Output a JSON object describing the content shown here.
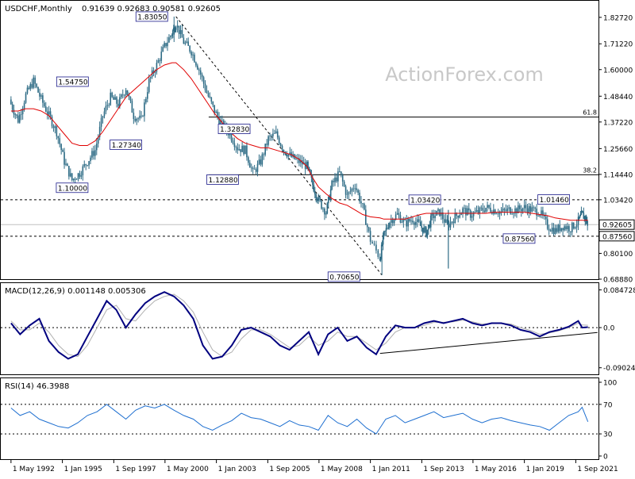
{
  "header": {
    "symbol": "USDCHF,Monthly",
    "ohlc": "0.91639 0.92683 0.90581 0.92605"
  },
  "watermark": "ActionForex.com",
  "chart_data": [
    {
      "type": "candlestick",
      "name": "price",
      "ylim": [
        0.6888,
        1.8992
      ],
      "y_ticks": [
        {
          "label": "1.82720",
          "value": 1.8272
        },
        {
          "label": "1.71220",
          "value": 1.7122
        },
        {
          "label": "1.60000",
          "value": 1.6
        },
        {
          "label": "1.48440",
          "value": 1.4844
        },
        {
          "label": "1.37220",
          "value": 1.3722
        },
        {
          "label": "1.25660",
          "value": 1.2566
        },
        {
          "label": "1.14440",
          "value": 1.1444
        },
        {
          "label": "1.03420",
          "value": 1.0342
        },
        {
          "label": "0.92605",
          "value": 0.92605
        },
        {
          "label": "0.87560",
          "value": 0.8756
        },
        {
          "label": "0.80100",
          "value": 0.801
        },
        {
          "label": "0.68880",
          "value": 0.6888
        }
      ],
      "series_x": [
        1992.33,
        1992.7,
        1993.1,
        1993.5,
        1993.9,
        1994.3,
        1994.7,
        1995.1,
        1995.5,
        1995.9,
        1996.3,
        1996.7,
        1997.1,
        1997.5,
        1997.9,
        1998.3,
        1998.7,
        1999.1,
        1999.5,
        1999.9,
        2000.3,
        2000.7,
        2000.9,
        2001.3,
        2001.7,
        2002.1,
        2002.5,
        2002.9,
        2003.3,
        2003.7,
        2004.1,
        2004.5,
        2004.9,
        2005.3,
        2005.7,
        2006.1,
        2006.5,
        2006.9,
        2007.3,
        2007.7,
        2008.0,
        2008.3,
        2008.7,
        2009.0,
        2009.4,
        2009.8,
        2010.2,
        2010.6,
        2011.0,
        2011.5,
        2011.7,
        2012.0,
        2012.4,
        2012.8,
        2013.2,
        2013.6,
        2013.9,
        2014.2,
        2014.6,
        2015.0,
        2015.4,
        2015.8,
        2016.2,
        2016.6,
        2017.0,
        2017.4,
        2017.8,
        2018.2,
        2018.6,
        2019.0,
        2019.4,
        2019.8,
        2020.2,
        2020.6,
        2021.0,
        2021.4,
        2021.8,
        2022.0,
        2022.2,
        2022.3
      ],
      "close": [
        1.45,
        1.38,
        1.49,
        1.55,
        1.47,
        1.4,
        1.33,
        1.2,
        1.12,
        1.15,
        1.2,
        1.25,
        1.4,
        1.48,
        1.45,
        1.52,
        1.4,
        1.38,
        1.55,
        1.62,
        1.7,
        1.76,
        1.8,
        1.72,
        1.68,
        1.6,
        1.5,
        1.42,
        1.36,
        1.32,
        1.26,
        1.25,
        1.15,
        1.2,
        1.3,
        1.32,
        1.25,
        1.22,
        1.2,
        1.18,
        1.1,
        1.03,
        0.98,
        1.1,
        1.15,
        1.05,
        1.1,
        1.0,
        0.86,
        0.78,
        0.88,
        0.94,
        0.97,
        0.93,
        0.95,
        0.92,
        0.89,
        0.96,
        0.98,
        0.92,
        0.96,
        0.99,
        0.97,
        0.98,
        1.0,
        0.99,
        0.98,
        0.99,
        0.99,
        1.0,
        0.99,
        0.98,
        0.92,
        0.9,
        0.92,
        0.91,
        0.94,
        0.97,
        0.95,
        0.926
      ],
      "ma": [
        1.42,
        1.42,
        1.43,
        1.43,
        1.42,
        1.4,
        1.36,
        1.32,
        1.28,
        1.27,
        1.27,
        1.29,
        1.33,
        1.38,
        1.43,
        1.48,
        1.51,
        1.54,
        1.57,
        1.6,
        1.62,
        1.63,
        1.63,
        1.6,
        1.56,
        1.51,
        1.46,
        1.41,
        1.37,
        1.33,
        1.3,
        1.28,
        1.27,
        1.26,
        1.26,
        1.25,
        1.24,
        1.23,
        1.21,
        1.18,
        1.13,
        1.09,
        1.06,
        1.04,
        1.02,
        1.01,
        0.99,
        0.97,
        0.96,
        0.955,
        0.95,
        0.95,
        0.95,
        0.95,
        0.96,
        0.97,
        0.975,
        0.975,
        0.975,
        0.975,
        0.975,
        0.975,
        0.975,
        0.975,
        0.975,
        0.98,
        0.98,
        0.98,
        0.98,
        0.98,
        0.975,
        0.97,
        0.965,
        0.955,
        0.95,
        0.945,
        0.945,
        0.945,
        0.945,
        0.945
      ],
      "fib_levels": [
        {
          "label": "61.8",
          "value": 1.3935
        },
        {
          "label": "38.2",
          "value": 1.1426
        }
      ],
      "dashed_levels": [
        1.0342,
        0.8756
      ],
      "annotations": [
        {
          "label": "1.83050",
          "x": 2000.8,
          "value": 1.8305
        },
        {
          "label": "1.54750",
          "x": 1996.5,
          "value": 1.5475
        },
        {
          "label": "1.27340",
          "x": 1997.3,
          "value": 1.2734
        },
        {
          "label": "1.10000",
          "x": 1994.6,
          "value": 1.1
        },
        {
          "label": "1.32830",
          "x": 2003.4,
          "value": 1.3283
        },
        {
          "label": "1.12880",
          "x": 2004.0,
          "value": 1.1288
        },
        {
          "label": "0.70650",
          "x": 2011.6,
          "value": 0.7065
        },
        {
          "label": "1.03420",
          "x": 2013.2,
          "value": 1.0342
        },
        {
          "label": "1.01460",
          "x": 2021.0,
          "value": 1.0146
        },
        {
          "label": "0.87560",
          "x": 2020.3,
          "value": 0.8756
        }
      ],
      "current_value": "0.92605",
      "current_level_value": "0.87560"
    },
    {
      "type": "line",
      "name": "MACD(12,26,9) 0.001148 0.005306",
      "ylim": [
        -0.105,
        0.1
      ],
      "y_ticks": [
        {
          "label": "0.084728",
          "value": 0.084728
        },
        {
          "label": "0.0",
          "value": 0.0
        },
        {
          "label": "-0.090243",
          "value": -0.090243
        }
      ],
      "x": [
        1992.33,
        1992.8,
        1993.3,
        1993.8,
        1994.3,
        1994.8,
        1995.3,
        1995.8,
        1996.3,
        1996.8,
        1997.3,
        1997.8,
        1998.3,
        1998.8,
        1999.3,
        1999.8,
        2000.3,
        2000.8,
        2001.3,
        2001.8,
        2002.3,
        2002.8,
        2003.3,
        2003.8,
        2004.3,
        2004.8,
        2005.3,
        2005.8,
        2006.3,
        2006.8,
        2007.3,
        2007.8,
        2008.3,
        2008.8,
        2009.3,
        2009.8,
        2010.3,
        2010.8,
        2011.3,
        2011.8,
        2012.3,
        2012.8,
        2013.3,
        2013.8,
        2014.3,
        2014.8,
        2015.3,
        2015.8,
        2016.3,
        2016.8,
        2017.3,
        2017.8,
        2018.3,
        2018.8,
        2019.3,
        2019.8,
        2020.3,
        2020.8,
        2021.3,
        2021.8,
        2022.0,
        2022.3
      ],
      "macd": [
        0.01,
        -0.015,
        0.005,
        0.02,
        -0.03,
        -0.055,
        -0.07,
        -0.06,
        -0.02,
        0.02,
        0.06,
        0.04,
        0.0,
        0.03,
        0.055,
        0.07,
        0.08,
        0.07,
        0.05,
        0.02,
        -0.04,
        -0.07,
        -0.065,
        -0.04,
        -0.005,
        0.0,
        -0.01,
        -0.02,
        -0.04,
        -0.05,
        -0.03,
        -0.01,
        -0.06,
        -0.015,
        0.0,
        -0.03,
        -0.02,
        -0.045,
        -0.06,
        -0.02,
        0.005,
        0.0,
        0.0,
        0.01,
        0.015,
        0.01,
        0.015,
        0.02,
        0.01,
        0.005,
        0.01,
        0.01,
        0.005,
        -0.005,
        -0.01,
        -0.02,
        -0.01,
        -0.005,
        0.002,
        0.015,
        0.0,
        0.001148
      ],
      "signal": [
        0.015,
        -0.005,
        -0.005,
        0.01,
        -0.01,
        -0.04,
        -0.06,
        -0.065,
        -0.04,
        0.0,
        0.04,
        0.05,
        0.02,
        0.015,
        0.04,
        0.06,
        0.07,
        0.075,
        0.06,
        0.035,
        -0.01,
        -0.05,
        -0.065,
        -0.055,
        -0.025,
        -0.005,
        -0.005,
        -0.015,
        -0.03,
        -0.045,
        -0.04,
        -0.02,
        -0.04,
        -0.03,
        -0.01,
        -0.02,
        -0.02,
        -0.035,
        -0.05,
        -0.035,
        -0.01,
        0.0,
        0.0,
        0.005,
        0.012,
        0.012,
        0.013,
        0.017,
        0.013,
        0.008,
        0.009,
        0.01,
        0.008,
        0.0,
        -0.006,
        -0.015,
        -0.012,
        -0.007,
        0.0,
        0.01,
        0.006,
        0.005306
      ],
      "trendline": [
        [
          2011.5,
          -0.058
        ],
        [
          2022.8,
          -0.011
        ]
      ]
    },
    {
      "type": "line",
      "name": "RSI(14) 46.3988",
      "ylim": [
        0,
        100
      ],
      "y_ticks": [
        {
          "label": "100",
          "value": 100
        },
        {
          "label": "70",
          "value": 70
        },
        {
          "label": "30",
          "value": 30
        },
        {
          "label": "0",
          "value": 0
        }
      ],
      "x": [
        1992.33,
        1992.8,
        1993.3,
        1993.8,
        1994.3,
        1994.8,
        1995.3,
        1995.8,
        1996.3,
        1996.8,
        1997.3,
        1997.8,
        1998.3,
        1998.8,
        1999.3,
        1999.8,
        2000.3,
        2000.8,
        2001.3,
        2001.8,
        2002.3,
        2002.8,
        2003.3,
        2003.8,
        2004.3,
        2004.8,
        2005.3,
        2005.8,
        2006.3,
        2006.8,
        2007.3,
        2007.8,
        2008.3,
        2008.8,
        2009.3,
        2009.8,
        2010.3,
        2010.8,
        2011.3,
        2011.8,
        2012.3,
        2012.8,
        2013.3,
        2013.8,
        2014.3,
        2014.8,
        2015.3,
        2015.8,
        2016.3,
        2016.8,
        2017.3,
        2017.8,
        2018.3,
        2018.8,
        2019.3,
        2019.8,
        2020.3,
        2020.8,
        2021.3,
        2021.8,
        2022.0,
        2022.3
      ],
      "values": [
        65,
        55,
        60,
        50,
        45,
        40,
        38,
        45,
        55,
        60,
        70,
        60,
        50,
        62,
        68,
        65,
        70,
        62,
        55,
        50,
        40,
        35,
        42,
        48,
        58,
        52,
        50,
        45,
        40,
        48,
        42,
        40,
        35,
        55,
        45,
        40,
        50,
        38,
        30,
        50,
        55,
        45,
        50,
        55,
        60,
        52,
        55,
        58,
        50,
        45,
        50,
        52,
        48,
        45,
        42,
        40,
        35,
        45,
        55,
        60,
        66,
        46.3988
      ]
    }
  ],
  "x_axis": {
    "range": [
      1991.8,
      2022.85
    ],
    "ticks": [
      {
        "label": "1 May 1992",
        "value": 1992.33
      },
      {
        "label": "1 Jan 1995",
        "value": 1995.0
      },
      {
        "label": "1 Sep 1997",
        "value": 1997.67
      },
      {
        "label": "1 May 2000",
        "value": 2000.33
      },
      {
        "label": "1 Jan 2003",
        "value": 2003.0
      },
      {
        "label": "1 Sep 2005",
        "value": 2005.67
      },
      {
        "label": "1 May 2008",
        "value": 2008.33
      },
      {
        "label": "1 Jan 2011",
        "value": 2011.0
      },
      {
        "label": "1 Sep 2013",
        "value": 2013.67
      },
      {
        "label": "1 May 2016",
        "value": 2016.33
      },
      {
        "label": "1 Jan 2019",
        "value": 2019.0
      },
      {
        "label": "1 Sep 2021",
        "value": 2021.67
      }
    ]
  },
  "colors": {
    "candle": "#2d6b85",
    "ma": "#e00000",
    "macd": "#00007f",
    "signal": "#b0b0b0",
    "rsi": "#1e6fd0",
    "grid": "#000000"
  }
}
